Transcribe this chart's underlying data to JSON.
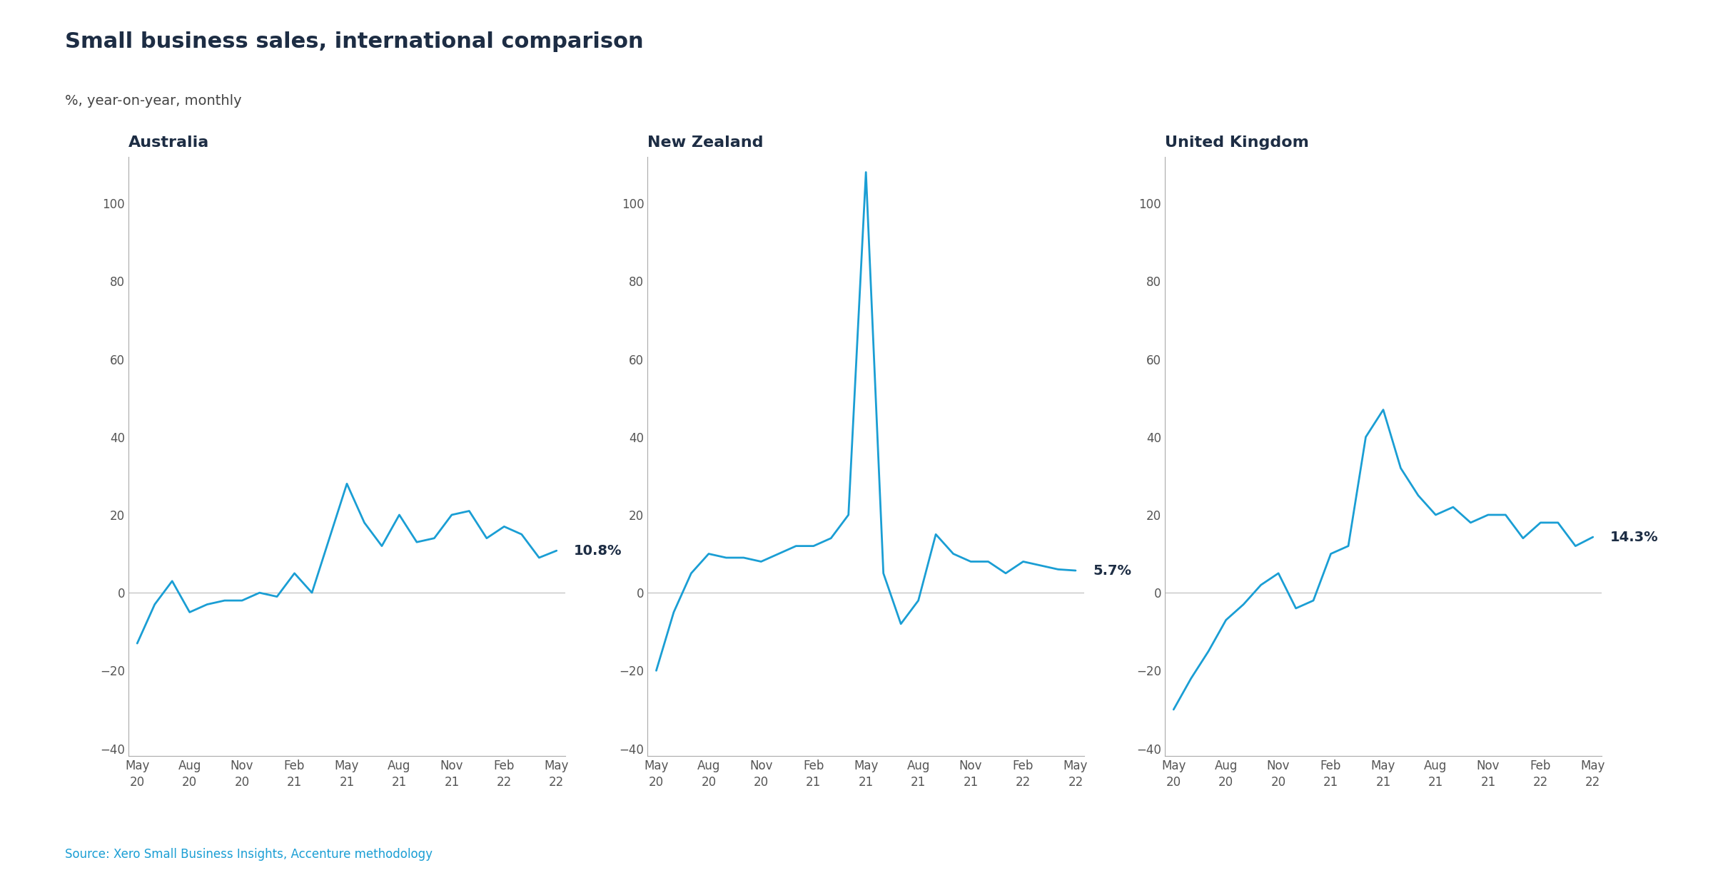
{
  "title": "Small business sales, international comparison",
  "subtitle": "%, year-on-year, monthly",
  "source": "Source: Xero Small Business Insights, Accenture methodology",
  "line_color": "#1a9ed4",
  "title_color": "#1d2d44",
  "subtitle_color": "#444444",
  "source_color": "#1a9ed4",
  "background_color": "#ffffff",
  "yticks": [
    -40,
    -20,
    0,
    20,
    40,
    60,
    80,
    100
  ],
  "xtick_labels": [
    "May\n20",
    "Aug\n20",
    "Nov\n20",
    "Feb\n21",
    "May\n21",
    "Aug\n21",
    "Nov\n21",
    "Feb\n22",
    "May\n22"
  ],
  "xtick_pos": [
    0,
    3,
    6,
    9,
    12,
    15,
    18,
    21,
    24
  ],
  "panels": [
    {
      "title": "Australia",
      "label": "10.8%",
      "values": [
        -13,
        -3,
        3,
        -5,
        -3,
        -2,
        -2,
        0,
        -1,
        5,
        0,
        14,
        28,
        18,
        12,
        20,
        13,
        14,
        20,
        21,
        14,
        17,
        15,
        9,
        10.8
      ]
    },
    {
      "title": "New Zealand",
      "label": "5.7%",
      "values": [
        -20,
        -5,
        5,
        10,
        9,
        9,
        8,
        10,
        12,
        12,
        14,
        20,
        108,
        5,
        -8,
        -2,
        15,
        10,
        8,
        8,
        5,
        8,
        7,
        6,
        5.7
      ]
    },
    {
      "title": "United Kingdom",
      "label": "14.3%",
      "values": [
        -30,
        -22,
        -15,
        -7,
        -3,
        2,
        5,
        -4,
        -2,
        10,
        12,
        40,
        47,
        32,
        25,
        20,
        22,
        18,
        20,
        20,
        14,
        18,
        18,
        12,
        14.3
      ]
    }
  ]
}
